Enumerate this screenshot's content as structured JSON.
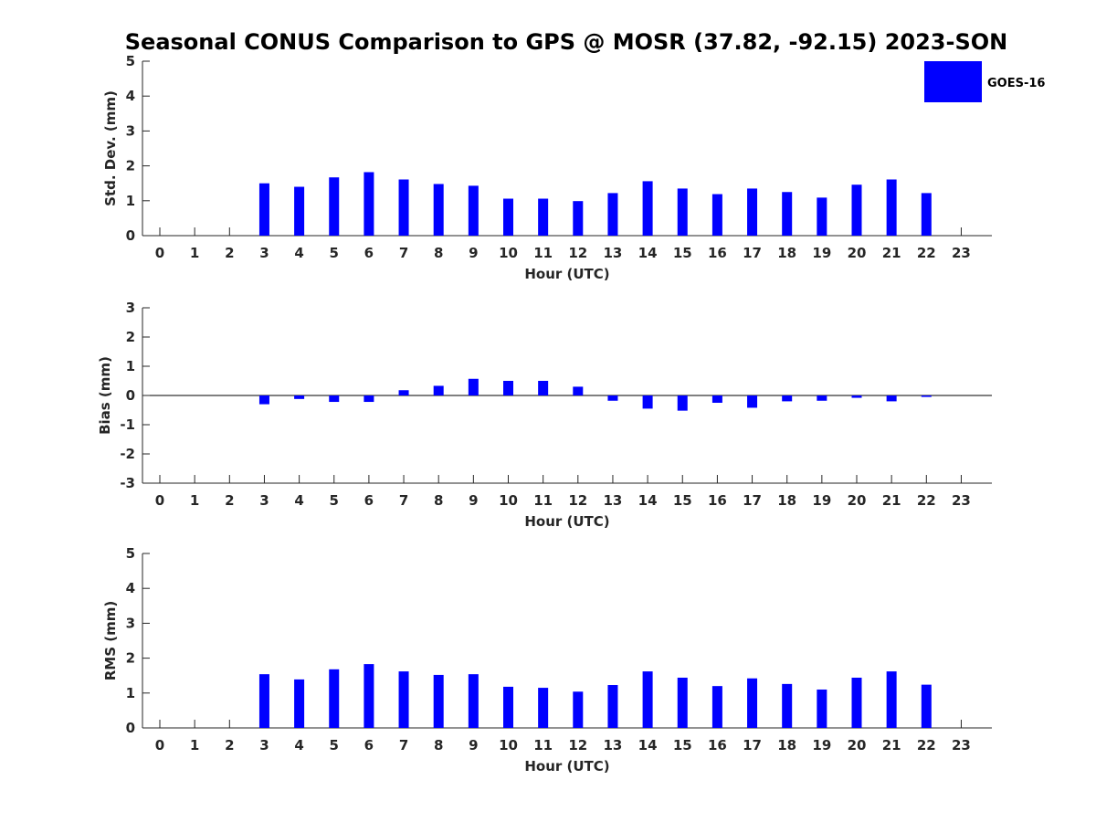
{
  "title": "Seasonal CONUS Comparison to GPS @ MOSR (37.82, -92.15) 2023-SON",
  "legend": {
    "label": "GOES-16",
    "color": "#0000ff",
    "placement": "top-right"
  },
  "chart_data": [
    {
      "type": "bar",
      "ylabel": "Std. Dev. (mm)",
      "xlabel": "Hour (UTC)",
      "ylim": [
        0,
        5
      ],
      "yticks": [
        0,
        1,
        2,
        3,
        4,
        5
      ],
      "xticks": [
        0,
        1,
        2,
        3,
        4,
        5,
        6,
        7,
        8,
        9,
        10,
        11,
        12,
        13,
        14,
        15,
        16,
        17,
        18,
        19,
        20,
        21,
        22,
        23
      ],
      "x": [
        3,
        4,
        5,
        6,
        7,
        8,
        9,
        10,
        11,
        12,
        13,
        14,
        15,
        16,
        17,
        18,
        19,
        20,
        21,
        22
      ],
      "series": [
        {
          "name": "GOES-16",
          "values": [
            1.5,
            1.4,
            1.67,
            1.82,
            1.61,
            1.48,
            1.43,
            1.06,
            1.06,
            0.99,
            1.22,
            1.56,
            1.35,
            1.19,
            1.35,
            1.25,
            1.09,
            1.46,
            1.61,
            1.22
          ]
        }
      ]
    },
    {
      "type": "bar",
      "ylabel": "Bias (mm)",
      "xlabel": "Hour (UTC)",
      "ylim": [
        -3,
        3
      ],
      "yticks": [
        -3,
        -2,
        -1,
        0,
        1,
        2,
        3
      ],
      "xticks": [
        0,
        1,
        2,
        3,
        4,
        5,
        6,
        7,
        8,
        9,
        10,
        11,
        12,
        13,
        14,
        15,
        16,
        17,
        18,
        19,
        20,
        21,
        22,
        23
      ],
      "x": [
        3,
        4,
        5,
        6,
        7,
        8,
        9,
        10,
        11,
        12,
        13,
        14,
        15,
        16,
        17,
        18,
        19,
        20,
        21,
        22
      ],
      "series": [
        {
          "name": "GOES-16",
          "values": [
            -0.3,
            -0.12,
            -0.22,
            -0.22,
            0.18,
            0.33,
            0.57,
            0.5,
            0.5,
            0.3,
            -0.18,
            -0.45,
            -0.52,
            -0.25,
            -0.42,
            -0.2,
            -0.18,
            -0.08,
            -0.2,
            -0.05
          ]
        }
      ]
    },
    {
      "type": "bar",
      "ylabel": "RMS (mm)",
      "xlabel": "Hour (UTC)",
      "ylim": [
        0,
        5
      ],
      "yticks": [
        0,
        1,
        2,
        3,
        4,
        5
      ],
      "xticks": [
        0,
        1,
        2,
        3,
        4,
        5,
        6,
        7,
        8,
        9,
        10,
        11,
        12,
        13,
        14,
        15,
        16,
        17,
        18,
        19,
        20,
        21,
        22,
        23
      ],
      "x": [
        3,
        4,
        5,
        6,
        7,
        8,
        9,
        10,
        11,
        12,
        13,
        14,
        15,
        16,
        17,
        18,
        19,
        20,
        21,
        22
      ],
      "series": [
        {
          "name": "GOES-16",
          "values": [
            1.54,
            1.39,
            1.68,
            1.83,
            1.62,
            1.52,
            1.54,
            1.18,
            1.15,
            1.04,
            1.23,
            1.62,
            1.44,
            1.2,
            1.42,
            1.26,
            1.1,
            1.44,
            1.62,
            1.24
          ]
        }
      ]
    }
  ]
}
